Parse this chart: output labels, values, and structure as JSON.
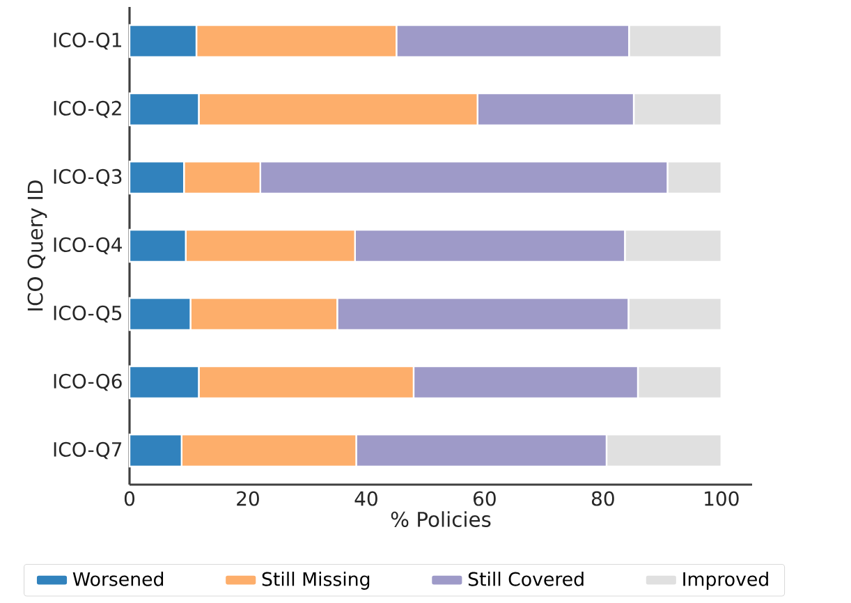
{
  "chart_data": {
    "type": "bar",
    "orientation": "horizontal",
    "stacked": true,
    "xlabel": "% Policies",
    "ylabel": "ICO Query ID",
    "categories": [
      "ICO-Q1",
      "ICO-Q2",
      "ICO-Q3",
      "ICO-Q4",
      "ICO-Q5",
      "ICO-Q6",
      "ICO-Q7"
    ],
    "series": [
      {
        "name": "Worsened",
        "color": "#3182bd",
        "values": [
          11.3,
          11.7,
          9.2,
          9.5,
          10.3,
          11.7,
          8.8
        ]
      },
      {
        "name": "Still Missing",
        "color": "#fdae6b",
        "values": [
          33.8,
          47.1,
          12.9,
          28.6,
          24.8,
          36.3,
          29.5
        ]
      },
      {
        "name": "Still Covered",
        "color": "#9e9ac8",
        "values": [
          39.3,
          26.4,
          68.8,
          45.6,
          49.2,
          37.9,
          42.3
        ]
      },
      {
        "name": "Improved",
        "color": "#e0e0e0",
        "values": [
          15.6,
          14.8,
          9.1,
          16.3,
          15.7,
          14.1,
          19.4
        ]
      }
    ],
    "xlim": [
      0,
      105.2
    ],
    "xticks": [
      0,
      20,
      40,
      60,
      80,
      100
    ],
    "grid": false,
    "legend": "bottom"
  }
}
